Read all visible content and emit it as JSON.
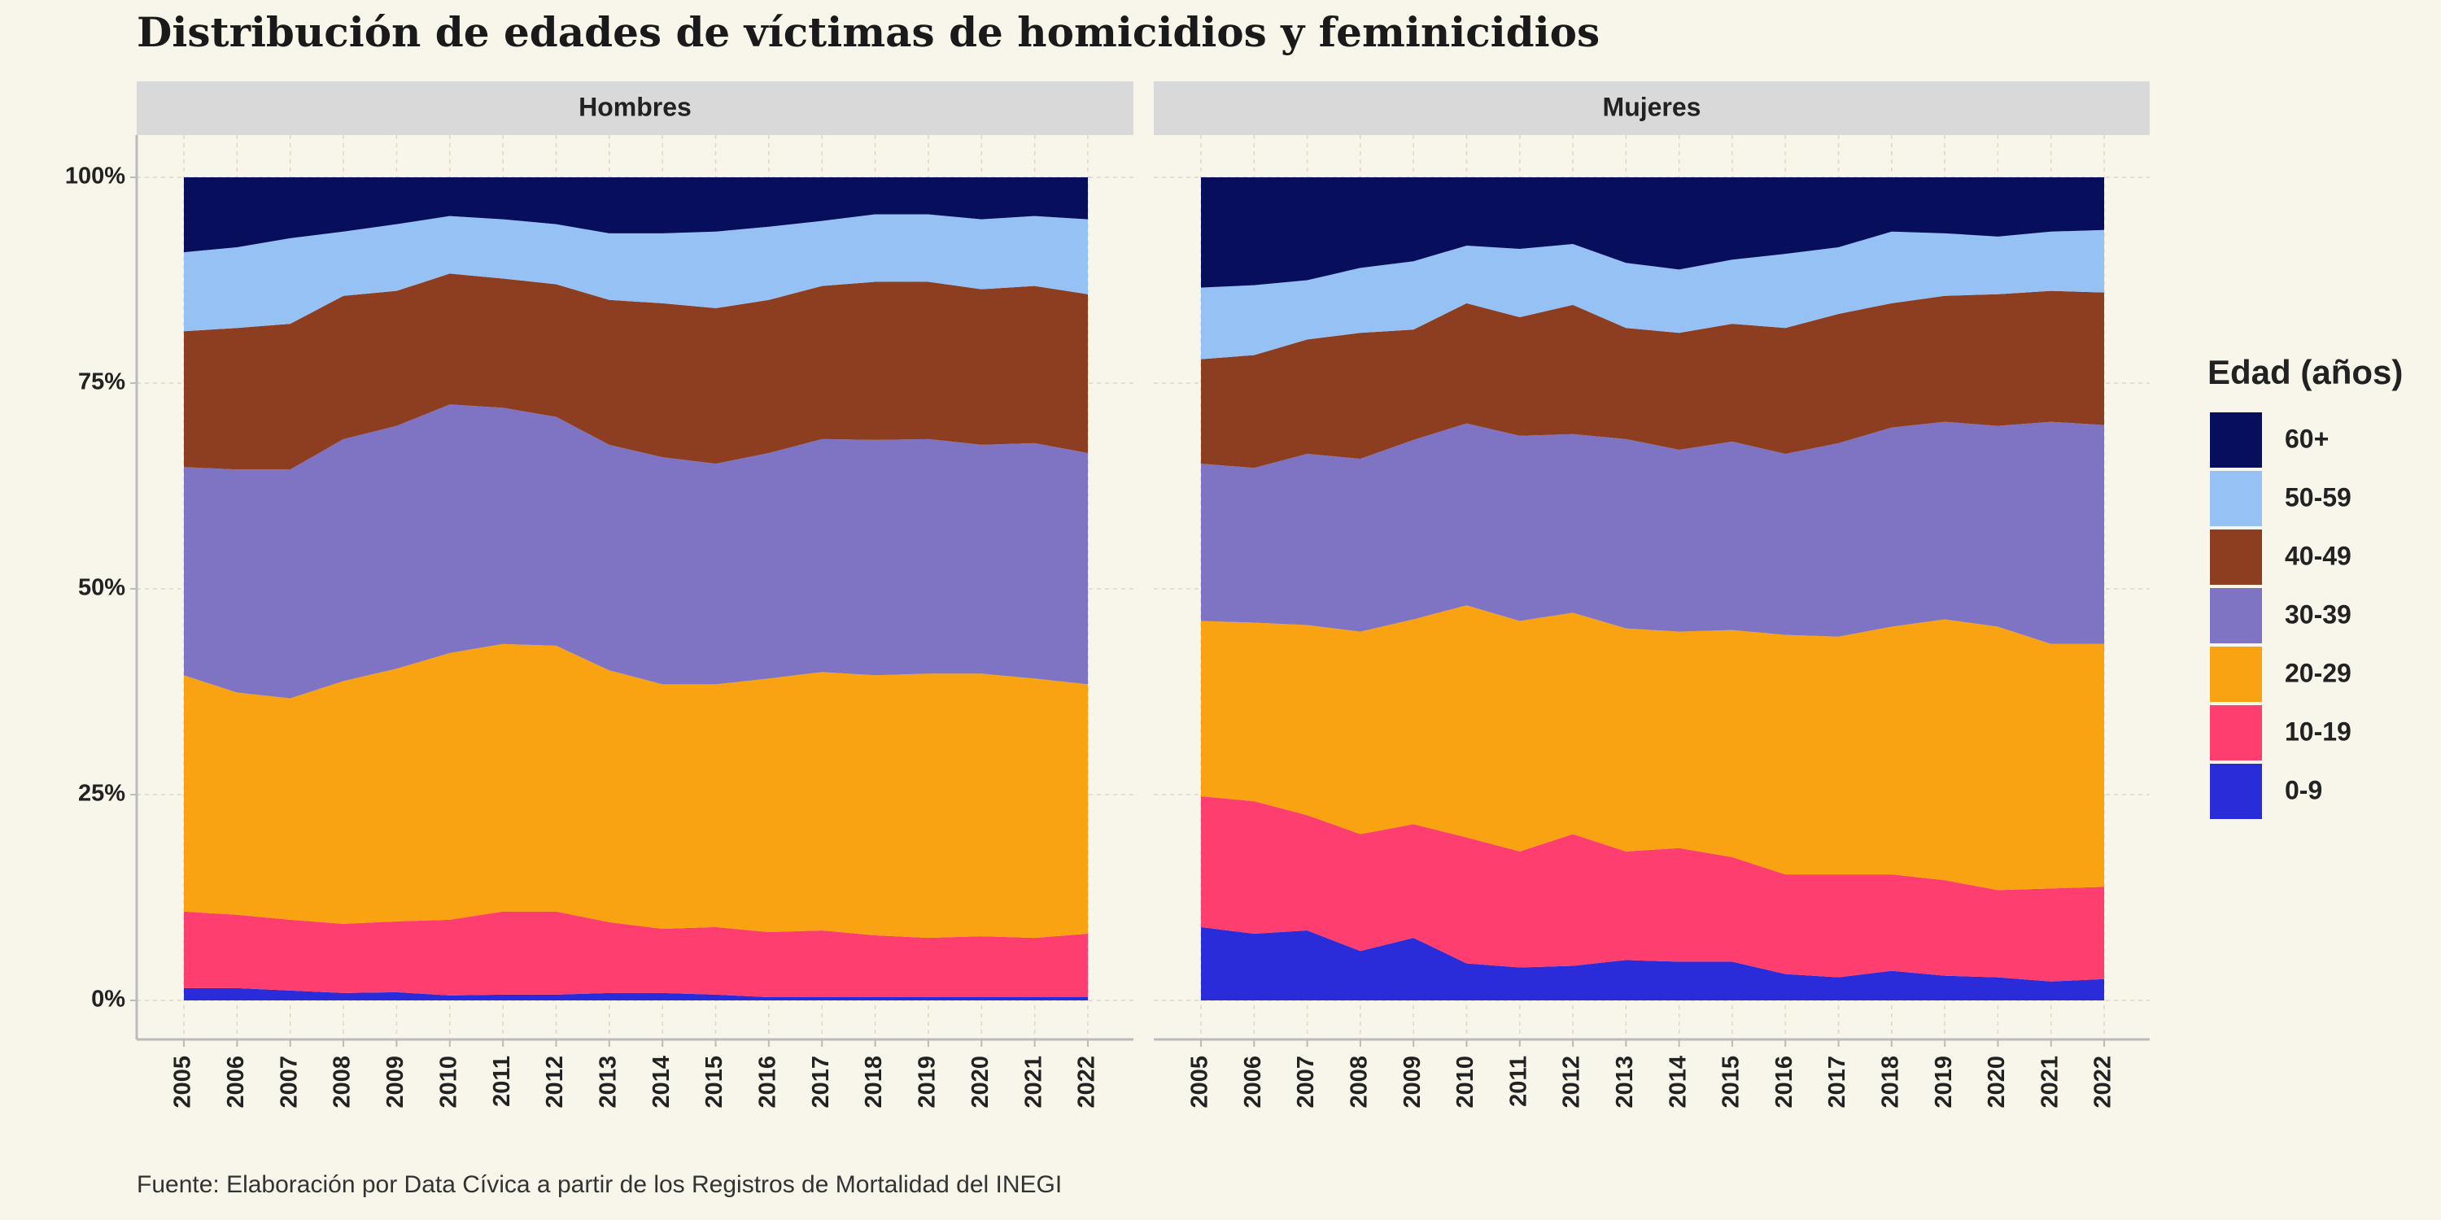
{
  "title": "Distribución de edades de víctimas de homicidios y feminicidios",
  "caption": "Fuente: Elaboración por Data Cívica a partir de los Registros de Mortalidad del INEGI",
  "legend_title": "Edad (años)",
  "chart_data": [
    {
      "type": "area",
      "stacked": true,
      "grid": true,
      "legend": "right",
      "title": "Hombres",
      "x": [
        2005,
        2006,
        2007,
        2008,
        2009,
        2010,
        2011,
        2012,
        2013,
        2014,
        2015,
        2016,
        2017,
        2018,
        2019,
        2020,
        2021,
        2022
      ],
      "xlim": [
        2005,
        2022
      ],
      "ylim": [
        0,
        100
      ],
      "yticks": [
        {
          "value": 0,
          "label": "0%"
        },
        {
          "value": 25,
          "label": "25%"
        },
        {
          "value": 50,
          "label": "50%"
        },
        {
          "value": 75,
          "label": "75%"
        },
        {
          "value": 100,
          "label": "100%"
        }
      ],
      "series": [
        {
          "name": "0-9",
          "color": "#2a2bd9",
          "values": [
            1.5,
            1.5,
            1.2,
            0.9,
            1.0,
            0.6,
            0.7,
            0.7,
            0.9,
            0.9,
            0.7,
            0.4,
            0.4,
            0.4,
            0.4,
            0.4,
            0.4,
            0.4
          ]
        },
        {
          "name": "10-19",
          "color": "#fd3e6e",
          "values": [
            9.3,
            8.9,
            8.6,
            8.4,
            8.6,
            9.2,
            10.1,
            10.1,
            8.6,
            7.8,
            8.2,
            7.9,
            8.1,
            7.5,
            7.2,
            7.4,
            7.2,
            7.7
          ]
        },
        {
          "name": "20-29",
          "color": "#f9a313",
          "values": [
            28.7,
            27.0,
            26.9,
            29.5,
            30.7,
            32.4,
            32.5,
            32.3,
            30.6,
            29.7,
            29.5,
            30.8,
            31.4,
            31.6,
            32.1,
            31.9,
            31.5,
            30.3
          ]
        },
        {
          "name": "30-39",
          "color": "#7f73c4",
          "values": [
            25.3,
            27.1,
            27.8,
            29.4,
            29.5,
            30.2,
            28.7,
            27.8,
            27.4,
            27.6,
            26.8,
            27.4,
            28.3,
            28.6,
            28.5,
            27.8,
            28.6,
            28.1
          ]
        },
        {
          "name": "40-49",
          "color": "#8e3e20",
          "values": [
            16.5,
            17.2,
            17.7,
            17.4,
            16.4,
            15.9,
            15.7,
            16.1,
            17.6,
            18.7,
            18.9,
            18.6,
            18.6,
            19.2,
            19.1,
            18.9,
            19.1,
            19.3
          ]
        },
        {
          "name": "50-59",
          "color": "#95c1f5",
          "values": [
            9.6,
            9.8,
            10.4,
            7.8,
            8.1,
            7.0,
            7.2,
            7.3,
            8.1,
            8.5,
            9.3,
            8.9,
            7.9,
            8.2,
            8.2,
            8.5,
            8.5,
            9.1
          ]
        },
        {
          "name": "60+",
          "color": "#070f5c",
          "values": [
            9.1,
            8.5,
            7.4,
            6.6,
            5.7,
            4.7,
            5.1,
            5.7,
            6.8,
            6.8,
            6.6,
            6.0,
            5.3,
            4.5,
            4.5,
            5.1,
            4.7,
            5.1
          ]
        }
      ]
    },
    {
      "type": "area",
      "stacked": true,
      "grid": true,
      "legend": "right",
      "title": "Mujeres",
      "x": [
        2005,
        2006,
        2007,
        2008,
        2009,
        2010,
        2011,
        2012,
        2013,
        2014,
        2015,
        2016,
        2017,
        2018,
        2019,
        2020,
        2021,
        2022
      ],
      "xlim": [
        2005,
        2022
      ],
      "ylim": [
        0,
        100
      ],
      "yticks": [
        {
          "value": 0,
          "label": "0%"
        },
        {
          "value": 25,
          "label": "25%"
        },
        {
          "value": 50,
          "label": "50%"
        },
        {
          "value": 75,
          "label": "75%"
        },
        {
          "value": 100,
          "label": "100%"
        }
      ],
      "series": [
        {
          "name": "0-9",
          "color": "#2a2bd9",
          "values": [
            8.9,
            8.1,
            8.5,
            6.0,
            7.6,
            4.5,
            4.0,
            4.2,
            4.9,
            4.7,
            4.7,
            3.2,
            2.8,
            3.6,
            3.0,
            2.8,
            2.3,
            2.6
          ]
        },
        {
          "name": "10-19",
          "color": "#fd3e6e",
          "values": [
            15.9,
            16.1,
            14.0,
            14.2,
            13.8,
            15.3,
            14.1,
            16.0,
            13.2,
            13.8,
            12.7,
            12.1,
            12.5,
            11.7,
            11.6,
            10.6,
            11.3,
            11.2
          ]
        },
        {
          "name": "20-29",
          "color": "#f9a313",
          "values": [
            21.3,
            21.7,
            23.1,
            24.6,
            24.9,
            28.2,
            28.0,
            26.9,
            27.1,
            26.3,
            27.6,
            29.1,
            28.9,
            30.1,
            31.7,
            32.0,
            29.7,
            29.5
          ]
        },
        {
          "name": "30-39",
          "color": "#7f73c4",
          "values": [
            19.1,
            18.8,
            20.8,
            21.0,
            21.8,
            22.1,
            22.5,
            21.7,
            23.0,
            22.1,
            22.9,
            22.0,
            23.5,
            24.2,
            24.0,
            24.4,
            27.0,
            26.6
          ]
        },
        {
          "name": "40-49",
          "color": "#8e3e20",
          "values": [
            12.7,
            13.7,
            13.9,
            15.3,
            13.4,
            14.6,
            14.4,
            15.7,
            13.5,
            14.2,
            14.3,
            15.3,
            15.7,
            15.1,
            15.3,
            16.0,
            15.9,
            16.1
          ]
        },
        {
          "name": "50-59",
          "color": "#95c1f5",
          "values": [
            8.7,
            8.5,
            7.2,
            7.9,
            8.3,
            7.0,
            8.3,
            7.4,
            7.9,
            7.7,
            7.8,
            9.0,
            8.1,
            8.7,
            7.6,
            7.0,
            7.2,
            7.6
          ]
        },
        {
          "name": "60+",
          "color": "#070f5c",
          "values": [
            13.4,
            13.1,
            12.5,
            11.0,
            10.2,
            8.3,
            8.7,
            8.1,
            10.4,
            11.2,
            10.0,
            9.3,
            8.5,
            6.6,
            6.8,
            7.2,
            6.6,
            6.4
          ]
        }
      ]
    }
  ]
}
